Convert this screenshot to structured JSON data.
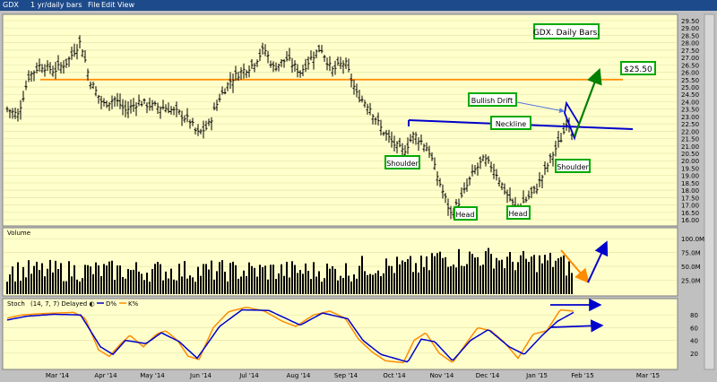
{
  "toolbar": {
    "symbol": "GDX",
    "period": "1 yr/daily bars",
    "menu": [
      "File",
      "Edit",
      "View"
    ]
  },
  "chart_data": {
    "type": "line",
    "title": "GDX. Daily Bars.",
    "x_labels": [
      "Mar '14",
      "Apr '14",
      "May '14",
      "Jun '14",
      "Jul '14",
      "Aug '14",
      "Sep '14",
      "Oct '14",
      "Nov '14",
      "Dec '14",
      "Jan '15",
      "Feb '15",
      "Mar '15"
    ],
    "price": {
      "y_ticks": [
        "29.50",
        "29.00",
        "28.50",
        "28.00",
        "27.50",
        "27.00",
        "26.50",
        "26.00",
        "25.50",
        "25.00",
        "24.50",
        "24.00",
        "23.50",
        "23.00",
        "22.50",
        "22.00",
        "21.50",
        "21.00",
        "20.50",
        "20.00",
        "19.50",
        "19.00",
        "18.50",
        "18.00",
        "17.50",
        "17.00",
        "16.50",
        "16.00"
      ],
      "ylim": [
        15.7,
        29.8
      ],
      "anchors": [
        [
          8,
          23.5
        ],
        [
          20,
          23.1
        ],
        [
          32,
          25.7
        ],
        [
          45,
          26.5
        ],
        [
          60,
          26.1
        ],
        [
          75,
          26.7
        ],
        [
          90,
          28.1
        ],
        [
          100,
          25.5
        ],
        [
          115,
          23.8
        ],
        [
          128,
          24.2
        ],
        [
          140,
          23.4
        ],
        [
          155,
          24.0
        ],
        [
          170,
          23.7
        ],
        [
          185,
          23.6
        ],
        [
          200,
          23.2
        ],
        [
          212,
          22.7
        ],
        [
          220,
          21.8
        ],
        [
          232,
          22.3
        ],
        [
          245,
          24.3
        ],
        [
          258,
          25.5
        ],
        [
          268,
          26.0
        ],
        [
          282,
          26.5
        ],
        [
          295,
          27.6
        ],
        [
          305,
          26.3
        ],
        [
          320,
          26.9
        ],
        [
          335,
          26.0
        ],
        [
          345,
          26.8
        ],
        [
          358,
          27.7
        ],
        [
          370,
          26.1
        ],
        [
          385,
          26.7
        ],
        [
          398,
          24.5
        ],
        [
          412,
          23.7
        ],
        [
          425,
          22.2
        ],
        [
          438,
          21.2
        ],
        [
          450,
          20.6
        ],
        [
          462,
          21.8
        ],
        [
          478,
          20.8
        ],
        [
          490,
          18.6
        ],
        [
          503,
          16.4
        ],
        [
          515,
          17.5
        ],
        [
          528,
          19.2
        ],
        [
          540,
          20.1
        ],
        [
          552,
          19.4
        ],
        [
          562,
          18.1
        ],
        [
          575,
          16.8
        ],
        [
          586,
          17.3
        ],
        [
          598,
          18.1
        ],
        [
          608,
          19.3
        ],
        [
          618,
          20.6
        ],
        [
          628,
          21.7
        ],
        [
          633,
          22.9
        ],
        [
          640,
          21.8
        ]
      ]
    },
    "volume": {
      "label": "Volume",
      "y_ticks": [
        "100.0M",
        "75.0M",
        "50.0M",
        "25.0M"
      ]
    },
    "stoch": {
      "label": "Stoch",
      "params": "(14, 7, 7) Delayed ◐",
      "legend": [
        "D%",
        "K%"
      ],
      "y_ticks": [
        "80",
        "60",
        "40",
        "20"
      ],
      "k_anchors": [
        [
          8,
          75
        ],
        [
          25,
          80
        ],
        [
          45,
          82
        ],
        [
          65,
          83
        ],
        [
          82,
          84
        ],
        [
          95,
          75
        ],
        [
          110,
          25
        ],
        [
          122,
          15
        ],
        [
          135,
          35
        ],
        [
          145,
          48
        ],
        [
          160,
          30
        ],
        [
          175,
          50
        ],
        [
          185,
          55
        ],
        [
          198,
          40
        ],
        [
          210,
          15
        ],
        [
          222,
          10
        ],
        [
          238,
          60
        ],
        [
          255,
          85
        ],
        [
          275,
          92
        ],
        [
          295,
          86
        ],
        [
          315,
          70
        ],
        [
          330,
          62
        ],
        [
          350,
          80
        ],
        [
          368,
          86
        ],
        [
          385,
          75
        ],
        [
          400,
          42
        ],
        [
          415,
          22
        ],
        [
          430,
          8
        ],
        [
          450,
          5
        ],
        [
          462,
          40
        ],
        [
          475,
          52
        ],
        [
          490,
          20
        ],
        [
          505,
          5
        ],
        [
          520,
          35
        ],
        [
          533,
          60
        ],
        [
          548,
          55
        ],
        [
          562,
          38
        ],
        [
          578,
          12
        ],
        [
          595,
          50
        ],
        [
          610,
          55
        ],
        [
          625,
          88
        ],
        [
          640,
          86
        ]
      ],
      "d_anchors": [
        [
          8,
          72
        ],
        [
          30,
          78
        ],
        [
          60,
          81
        ],
        [
          90,
          80
        ],
        [
          112,
          30
        ],
        [
          126,
          18
        ],
        [
          140,
          40
        ],
        [
          163,
          35
        ],
        [
          180,
          52
        ],
        [
          200,
          38
        ],
        [
          220,
          12
        ],
        [
          245,
          62
        ],
        [
          270,
          88
        ],
        [
          300,
          87
        ],
        [
          335,
          64
        ],
        [
          360,
          83
        ],
        [
          388,
          74
        ],
        [
          405,
          40
        ],
        [
          425,
          18
        ],
        [
          455,
          6
        ],
        [
          470,
          42
        ],
        [
          485,
          38
        ],
        [
          505,
          8
        ],
        [
          525,
          40
        ],
        [
          545,
          57
        ],
        [
          568,
          30
        ],
        [
          585,
          18
        ],
        [
          605,
          48
        ],
        [
          622,
          70
        ],
        [
          640,
          84
        ]
      ]
    },
    "annotations": {
      "target": "$25.50",
      "bullish_drift": "Bullish Drift",
      "neckline": "Neckline",
      "shoulder_left": "Shoulder",
      "shoulder_right": "Shoulder",
      "head_1": "Head",
      "head_2": "Head"
    },
    "colors": {
      "panel_bg": "#ffffcc",
      "frame_bg": "#c0c0c0",
      "bars": "#000000",
      "resistance_line": "#ff8c00",
      "neckline": "#0000cc",
      "arrow_up": "#008000",
      "stoch_k": "#ff8c00",
      "stoch_d": "#0000cc",
      "label_border": "#00aa00"
    }
  }
}
